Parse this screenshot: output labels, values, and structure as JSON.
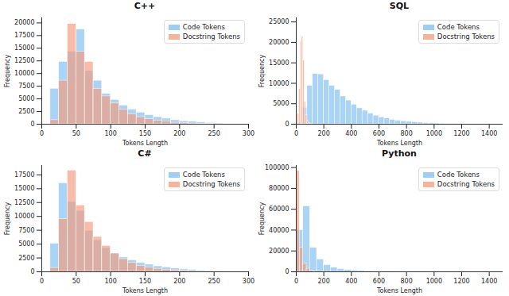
{
  "chart_data": [
    {
      "type": "histogram",
      "title": "C++",
      "x_label": "Tokens Length",
      "y_label": "Frequency",
      "xlim": [
        0,
        300
      ],
      "xticks": [
        0,
        50,
        100,
        150,
        200,
        250,
        300
      ],
      "ylim": [
        0,
        21000
      ],
      "yticks": [
        0,
        2500,
        5000,
        7500,
        10000,
        12500,
        15000,
        17500,
        20000
      ],
      "grid": false,
      "legend": "upper right",
      "series": [
        {
          "name": "Code Tokens",
          "color": "#7dbdf0",
          "bins": [
            12.5,
            25,
            37.5,
            50,
            62.5,
            75,
            87.5,
            100,
            112.5,
            125,
            137.5,
            150,
            162.5,
            175,
            187.5,
            200,
            212.5,
            225,
            237.5,
            250,
            262.5
          ],
          "values": [
            7000,
            12300,
            14300,
            18700,
            10500,
            8600,
            6000,
            4800,
            3700,
            2900,
            2300,
            1800,
            1400,
            1100,
            800,
            600,
            500,
            350,
            250,
            150
          ]
        },
        {
          "name": "Docstring Tokens",
          "color": "#f59a7a",
          "bins": [
            12.5,
            25,
            37.5,
            50,
            62.5,
            75,
            87.5,
            100,
            112.5,
            125,
            137.5,
            150,
            162.5,
            175,
            187.5,
            200,
            212.5,
            225,
            237.5,
            250,
            262.5
          ],
          "values": [
            800,
            8600,
            19800,
            14300,
            12300,
            7000,
            5500,
            4100,
            2900,
            2000,
            1400,
            1000,
            700,
            500,
            300,
            200,
            150,
            100,
            50,
            30
          ]
        }
      ]
    },
    {
      "type": "histogram",
      "title": "SQL",
      "x_label": "Tokens Length",
      "y_label": "Frequency",
      "xlim": [
        0,
        1500
      ],
      "xticks": [
        0,
        200,
        400,
        600,
        800,
        1000,
        1200,
        1400
      ],
      "ylim": [
        0,
        26000
      ],
      "yticks": [
        0,
        5000,
        10000,
        15000,
        20000,
        25000
      ],
      "grid": false,
      "legend": "upper right",
      "series": [
        {
          "name": "Code Tokens",
          "color": "#7dbdf0",
          "bins": [
            0,
            40,
            80,
            120,
            160,
            200,
            240,
            280,
            320,
            360,
            400,
            440,
            480,
            520,
            560,
            600,
            640,
            680,
            720,
            760,
            800,
            840,
            880,
            920,
            960,
            1000,
            1040,
            1080,
            1120,
            1160,
            1200
          ],
          "values": [
            300,
            4000,
            9400,
            12300,
            12200,
            10800,
            9400,
            8400,
            6800,
            5800,
            4800,
            3900,
            3300,
            2600,
            2100,
            1700,
            1400,
            1100,
            900,
            750,
            600,
            500,
            400,
            300,
            250,
            200,
            160,
            130,
            100,
            80
          ]
        },
        {
          "name": "Docstring Tokens",
          "color": "#f59a7a",
          "bins": [
            0,
            10,
            20,
            30,
            40,
            50,
            60,
            70,
            80,
            90,
            100,
            110
          ],
          "values": [
            200,
            2600,
            8600,
            20300,
            21500,
            15600,
            5500,
            2200,
            800,
            300,
            100
          ]
        }
      ]
    },
    {
      "type": "histogram",
      "title": "C#",
      "x_label": "Tokens Length",
      "y_label": "Frequency",
      "xlim": [
        0,
        300
      ],
      "xticks": [
        0,
        50,
        100,
        150,
        200,
        250,
        300
      ],
      "ylim": [
        0,
        19200
      ],
      "yticks": [
        0,
        2500,
        5000,
        7500,
        10000,
        12500,
        15000,
        17500
      ],
      "grid": false,
      "legend": "upper right",
      "series": [
        {
          "name": "Code Tokens",
          "color": "#7dbdf0",
          "bins": [
            12.5,
            25,
            37.5,
            50,
            62.5,
            75,
            87.5,
            100,
            112.5,
            125,
            137.5,
            150,
            162.5,
            175,
            187.5,
            200,
            212.5,
            225,
            237.5,
            250,
            262.5
          ],
          "values": [
            5100,
            16000,
            12600,
            11000,
            7400,
            5700,
            4300,
            3300,
            2600,
            2100,
            1600,
            1300,
            1000,
            800,
            600,
            450,
            350,
            250,
            180,
            120
          ]
        },
        {
          "name": "Docstring Tokens",
          "color": "#f59a7a",
          "bins": [
            12.5,
            25,
            37.5,
            50,
            62.5,
            75,
            87.5,
            100,
            112.5,
            125,
            137.5,
            150,
            162.5,
            175,
            187.5,
            200,
            212.5,
            225,
            237.5,
            250,
            262.5
          ],
          "values": [
            700,
            9500,
            18300,
            12000,
            9000,
            6300,
            4700,
            3300,
            2300,
            1600,
            1100,
            800,
            550,
            400,
            270,
            180,
            120,
            80,
            50,
            30
          ]
        }
      ]
    },
    {
      "type": "histogram",
      "title": "Python",
      "x_label": "Tokens Length",
      "y_label": "Frequency",
      "xlim": [
        0,
        1500
      ],
      "xticks": [
        0,
        200,
        400,
        600,
        800,
        1000,
        1200,
        1400
      ],
      "ylim": [
        0,
        102000
      ],
      "yticks": [
        0,
        20000,
        40000,
        60000,
        80000,
        100000
      ],
      "grid": false,
      "legend": "upper right",
      "series": [
        {
          "name": "Code Tokens",
          "color": "#7dbdf0",
          "bins": [
            0,
            50,
            100,
            150,
            200,
            250,
            300,
            350,
            400,
            450,
            500,
            550,
            600,
            650,
            700,
            750,
            800,
            850,
            900,
            950,
            1000,
            1050,
            1100,
            1150,
            1200,
            1250,
            1300,
            1350,
            1400,
            1450
          ],
          "values": [
            40000,
            62800,
            23000,
            12000,
            6500,
            4000,
            2600,
            1800,
            1300,
            900,
            700,
            500,
            400,
            300,
            250,
            200,
            160,
            130,
            100,
            80,
            60,
            50,
            40,
            30,
            25,
            20,
            15,
            10,
            8
          ]
        },
        {
          "name": "Docstring Tokens",
          "color": "#f59a7a",
          "bins": [
            0,
            25,
            50,
            75,
            100,
            125,
            150,
            175,
            200
          ],
          "values": [
            97000,
            23000,
            8000,
            3000,
            1200,
            500,
            200,
            100
          ]
        }
      ]
    }
  ]
}
